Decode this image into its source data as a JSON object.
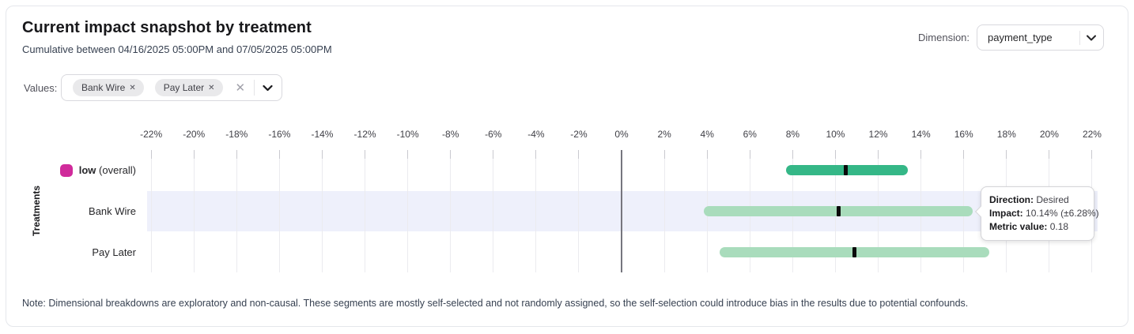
{
  "header": {
    "title": "Current impact snapshot by treatment",
    "subtitle": "Cumulative between 04/16/2025 05:00PM and 07/05/2025 05:00PM",
    "dimension_label": "Dimension:",
    "dimension_value": "payment_type"
  },
  "filters": {
    "values_label": "Values:",
    "chips": [
      {
        "label": "Bank Wire"
      },
      {
        "label": "Pay Later"
      }
    ]
  },
  "icons": {
    "chip_remove": "✕",
    "clear_all": "✕"
  },
  "chart_data": {
    "type": "bar",
    "orientation": "horizontal",
    "ylabel": "Treatments",
    "x_tick_suffix": "%",
    "x_ticks": [
      -22,
      -20,
      -18,
      -16,
      -14,
      -12,
      -10,
      -8,
      -6,
      -4,
      -2,
      0,
      2,
      4,
      6,
      8,
      10,
      12,
      14,
      16,
      18,
      20,
      22
    ],
    "xlim": [
      -22.19,
      22.26
    ],
    "grid": true,
    "rows": [
      {
        "name_strong": "low",
        "name_plain": " (overall)",
        "swatch": "#d02b9b",
        "color": "#35b787",
        "ci_low": 7.7,
        "ci_high": 13.4,
        "impact": 10.5,
        "highlighted": false
      },
      {
        "name_strong": "",
        "name_plain": "Bank Wire",
        "swatch": null,
        "color": "#a9dcbc",
        "ci_low": 3.86,
        "ci_high": 16.42,
        "impact": 10.14,
        "highlighted": true
      },
      {
        "name_strong": "",
        "name_plain": "Pay Later",
        "swatch": null,
        "color": "#a9dcbc",
        "ci_low": 4.6,
        "ci_high": 17.2,
        "impact": 10.9,
        "highlighted": false
      }
    ]
  },
  "tooltip": {
    "lines": [
      {
        "label": "Direction:",
        "value": "Desired"
      },
      {
        "label": "Impact:",
        "value": "10.14% (±6.28%)"
      },
      {
        "label": "Metric value:",
        "value": "0.18"
      }
    ]
  },
  "note": "Note: Dimensional breakdowns are exploratory and non-causal. These segments are mostly self-selected and not randomly assigned, so the self-selection could introduce bias in the results due to potential confounds."
}
